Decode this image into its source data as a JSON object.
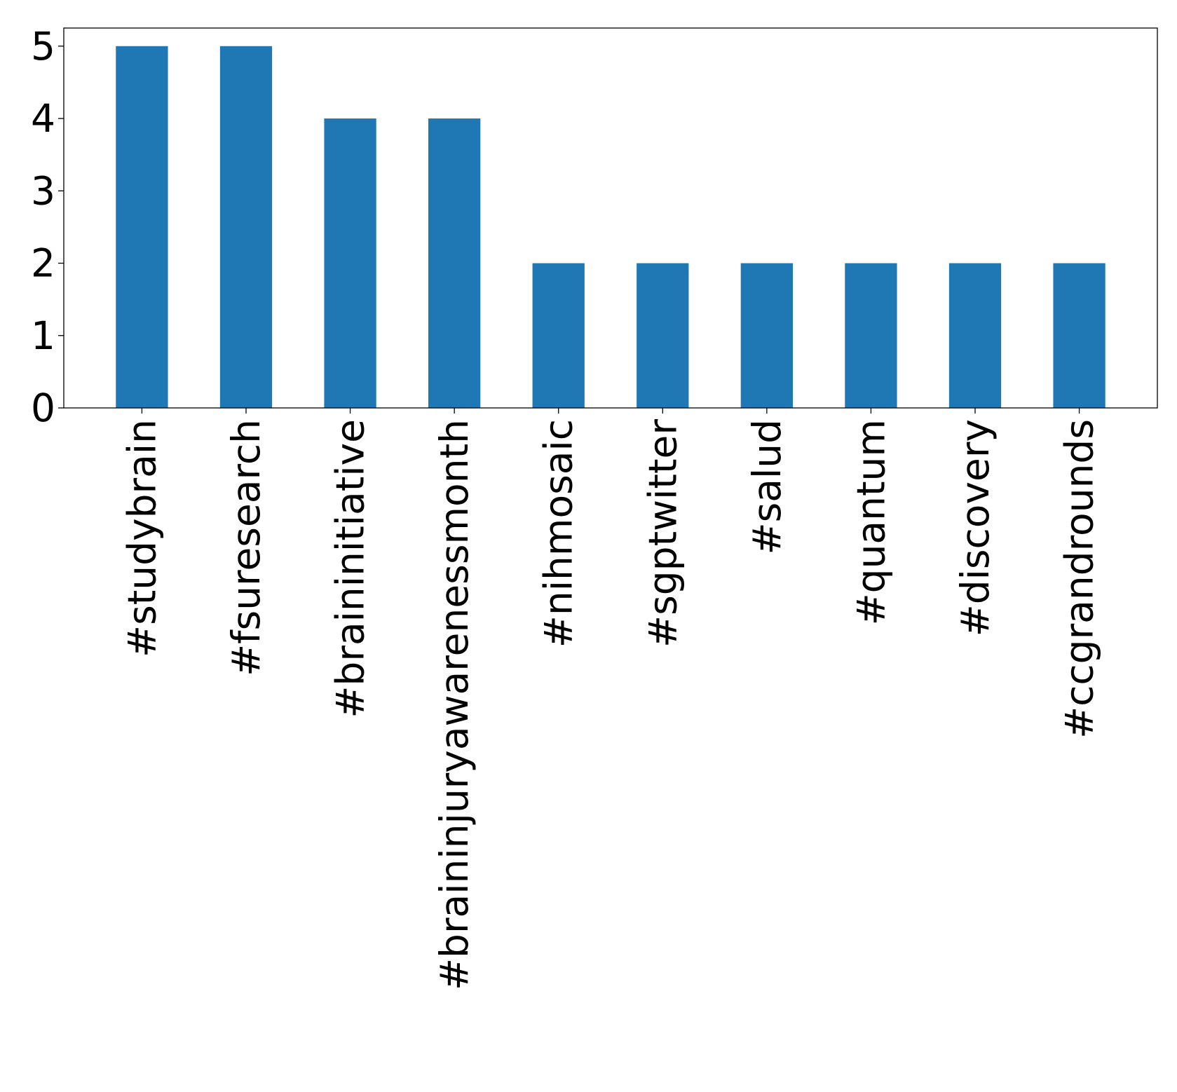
{
  "chart_data": {
    "type": "bar",
    "title": "",
    "xlabel": "",
    "ylabel": "",
    "categories": [
      "#studybrain",
      "#fsuresearch",
      "#braininitiative",
      "#braininjuryawarenessmonth",
      "#nihmosaic",
      "#sgptwitter",
      "#salud",
      "#quantum",
      "#discovery",
      "#ccgrandrounds"
    ],
    "values": [
      5,
      5,
      4,
      4,
      2,
      2,
      2,
      2,
      2,
      2
    ],
    "ylim": [
      0,
      5.25
    ],
    "yticks": [
      "0",
      "1",
      "2",
      "3",
      "4",
      "5"
    ],
    "bar_color": "#1f77b4",
    "grid": false,
    "legend": "none"
  }
}
